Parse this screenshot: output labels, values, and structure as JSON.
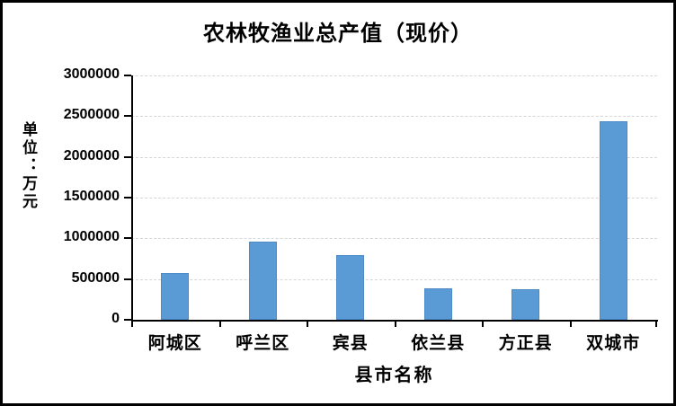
{
  "chart_data": {
    "type": "bar",
    "title": "农林牧渔业总产值（现价）",
    "ylabel": "单位：万元",
    "xlabel": "县市名称",
    "categories": [
      "阿城区",
      "呼兰区",
      "宾县",
      "依兰县",
      "方正县",
      "双城市"
    ],
    "values": [
      575000,
      965000,
      790000,
      390000,
      380000,
      2440000
    ],
    "ylim": [
      0,
      3000000
    ],
    "yticks": [
      0,
      500000,
      1000000,
      1500000,
      2000000,
      2500000,
      3000000
    ],
    "ytick_labels": [
      "0",
      "500000",
      "1000000",
      "1500000",
      "2000000",
      "2500000",
      "3000000"
    ],
    "grid": "horizontal-dashed",
    "legend": "none",
    "bar_color": "#5b9bd5",
    "gridline_color": "#d6d6d6",
    "axis_color": "#000000"
  }
}
